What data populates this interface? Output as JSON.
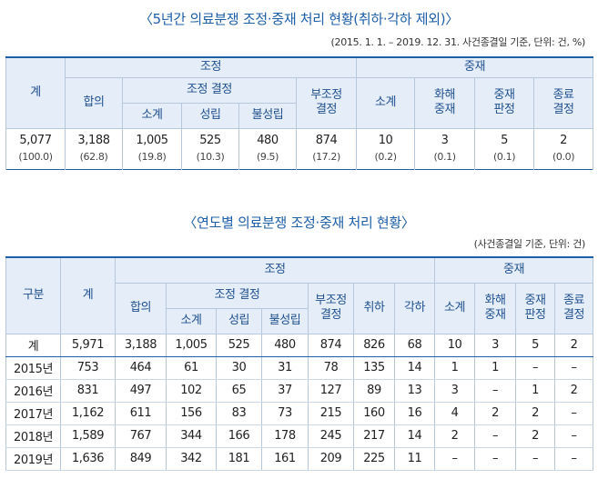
{
  "table1": {
    "title": "〈5년간 의료분쟁 조정·중재 처리 현황(취하·각하 제외)〉",
    "note": "(2015. 1. 1. – 2019. 12. 31. 사건종결일 기준, 단위: 건, %)",
    "headers": {
      "total": "계",
      "mediation": "조정",
      "arbitration": "중재",
      "agreement": "합의",
      "mediation_decision": "조정 결정",
      "subtotal": "소계",
      "established": "성립",
      "not_established": "불성립",
      "non_mediation": "부조정\n결정",
      "arb_subtotal": "소계",
      "settlement_arb": "화해\n중재",
      "arb_decision": "중재\n판정",
      "end_decision": "종료\n결정"
    },
    "row": [
      {
        "v": "5,077",
        "p": "(100.0)"
      },
      {
        "v": "3,188",
        "p": "(62.8)"
      },
      {
        "v": "1,005",
        "p": "(19.8)"
      },
      {
        "v": "525",
        "p": "(10.3)"
      },
      {
        "v": "480",
        "p": "(9.5)"
      },
      {
        "v": "874",
        "p": "(17.2)"
      },
      {
        "v": "10",
        "p": "(0.2)"
      },
      {
        "v": "3",
        "p": "(0.1)"
      },
      {
        "v": "5",
        "p": "(0.1)"
      },
      {
        "v": "2",
        "p": "(0.0)"
      }
    ]
  },
  "table2": {
    "title": "〈연도별 의료분쟁 조정·중재 처리 현황〉",
    "note": "(사건종결일 기준, 단위: 건)",
    "headers": {
      "category": "구분",
      "total": "계",
      "mediation": "조정",
      "arbitration": "중재",
      "agreement": "합의",
      "mediation_decision": "조정 결정",
      "subtotal": "소계",
      "established": "성립",
      "not_established": "불성립",
      "non_mediation": "부조정\n결정",
      "withdrawal": "취하",
      "dismissal": "각하",
      "arb_subtotal": "소계",
      "settlement_arb": "화해\n중재",
      "arb_decision": "중재\n판정",
      "end_decision": "종료\n결정"
    },
    "rows": [
      [
        "계",
        "5,971",
        "3,188",
        "1,005",
        "525",
        "480",
        "874",
        "826",
        "68",
        "10",
        "3",
        "5",
        "2"
      ],
      [
        "2015년",
        "753",
        "464",
        "61",
        "30",
        "31",
        "78",
        "135",
        "14",
        "1",
        "1",
        "–",
        "–"
      ],
      [
        "2016년",
        "831",
        "497",
        "102",
        "65",
        "37",
        "127",
        "89",
        "13",
        "3",
        "–",
        "1",
        "2"
      ],
      [
        "2017년",
        "1,162",
        "611",
        "156",
        "83",
        "73",
        "215",
        "160",
        "16",
        "4",
        "2",
        "2",
        "–"
      ],
      [
        "2018년",
        "1,589",
        "767",
        "344",
        "166",
        "178",
        "245",
        "217",
        "14",
        "2",
        "–",
        "2",
        "–"
      ],
      [
        "2019년",
        "1,636",
        "849",
        "342",
        "181",
        "161",
        "209",
        "225",
        "11",
        "–",
        "–",
        "–",
        "–"
      ]
    ]
  }
}
